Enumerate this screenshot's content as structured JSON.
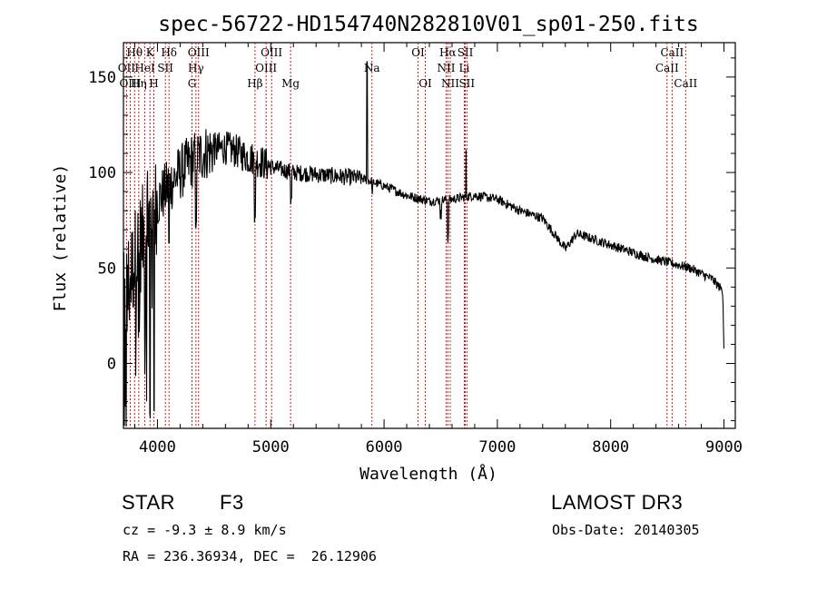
{
  "chart_data": {
    "type": "line",
    "title": "spec-56722-HD154740N282810V01_sp01-250.fits",
    "xlabel": "Wavelength (Å)",
    "ylabel": "Flux (relative)",
    "xlim": [
      3700,
      9100
    ],
    "ylim": [
      -34,
      168
    ],
    "x_ticks": [
      4000,
      5000,
      6000,
      7000,
      8000,
      9000
    ],
    "y_ticks": [
      0,
      50,
      100,
      150
    ],
    "x_tick_labels": [
      "4000",
      "5000",
      "6000",
      "7000",
      "8000",
      "9000"
    ],
    "y_tick_labels": [
      "0",
      "50",
      "100",
      "150"
    ],
    "line_color": "#d00000",
    "series": [
      {
        "name": "Flux",
        "color": "#000000",
        "continuum": [
          [
            3700,
            30
          ],
          [
            3800,
            55
          ],
          [
            3900,
            72
          ],
          [
            4000,
            85
          ],
          [
            4100,
            93
          ],
          [
            4200,
            100
          ],
          [
            4300,
            106
          ],
          [
            4400,
            110
          ],
          [
            4500,
            112
          ],
          [
            4600,
            113
          ],
          [
            4700,
            111
          ],
          [
            4800,
            108
          ],
          [
            4900,
            106
          ],
          [
            5000,
            103
          ],
          [
            5200,
            100
          ],
          [
            5400,
            99
          ],
          [
            5600,
            98
          ],
          [
            5800,
            97
          ],
          [
            6000,
            93
          ],
          [
            6200,
            88
          ],
          [
            6400,
            85
          ],
          [
            6600,
            86
          ],
          [
            6800,
            88
          ],
          [
            7000,
            86
          ],
          [
            7200,
            80
          ],
          [
            7400,
            76
          ],
          [
            7600,
            60
          ],
          [
            7700,
            68
          ],
          [
            7900,
            64
          ],
          [
            8100,
            60
          ],
          [
            8300,
            56
          ],
          [
            8500,
            53
          ],
          [
            8700,
            50
          ],
          [
            8900,
            44
          ],
          [
            8990,
            38
          ],
          [
            9000,
            8
          ]
        ],
        "spikes": [
          [
            5850,
            158
          ],
          [
            6725,
            112
          ]
        ],
        "dips": [
          [
            6563,
            63
          ],
          [
            6500,
            75
          ],
          [
            5895,
            88
          ],
          [
            5180,
            82
          ],
          [
            4861,
            73
          ],
          [
            4340,
            70
          ],
          [
            4102,
            60
          ],
          [
            3970,
            -28
          ],
          [
            3934,
            -30
          ]
        ]
      }
    ],
    "lines": [
      {
        "label": "Hθ",
        "wavelength": 3798,
        "row": 0
      },
      {
        "label": "OII",
        "wavelength": 3727,
        "row": 1
      },
      {
        "label": "OIII",
        "wavelength": 3760,
        "row": 2
      },
      {
        "label": "K",
        "wavelength": 3934,
        "row": 0
      },
      {
        "label": "HeI",
        "wavelength": 3889,
        "row": 1
      },
      {
        "label": "Hη",
        "wavelength": 3835,
        "row": 2
      },
      {
        "label": "H",
        "wavelength": 3968,
        "row": 2
      },
      {
        "label": "Hδ",
        "wavelength": 4102,
        "row": 0
      },
      {
        "label": "SII",
        "wavelength": 4070,
        "row": 1
      },
      {
        "label": "OIII",
        "wavelength": 4363,
        "row": 0
      },
      {
        "label": "Hγ",
        "wavelength": 4340,
        "row": 1
      },
      {
        "label": "G",
        "wavelength": 4305,
        "row": 2
      },
      {
        "label": "Hβ",
        "wavelength": 4861,
        "row": 2
      },
      {
        "label": "OIII",
        "wavelength": 5007,
        "row": 0
      },
      {
        "label": "OIII",
        "wavelength": 4959,
        "row": 1
      },
      {
        "label": "Mg",
        "wavelength": 5175,
        "row": 2
      },
      {
        "label": "Na",
        "wavelength": 5893,
        "row": 1
      },
      {
        "label": "OI",
        "wavelength": 6300,
        "row": 0
      },
      {
        "label": "OI",
        "wavelength": 6364,
        "row": 2
      },
      {
        "label": "Hα",
        "wavelength": 6563,
        "row": 0
      },
      {
        "label": "NII",
        "wavelength": 6548,
        "row": 1
      },
      {
        "label": "NII",
        "wavelength": 6584,
        "row": 2
      },
      {
        "label": "SII",
        "wavelength": 6717,
        "row": 0
      },
      {
        "label": "Li",
        "wavelength": 6708,
        "row": 1
      },
      {
        "label": "SII",
        "wavelength": 6731,
        "row": 2
      },
      {
        "label": "CaII",
        "wavelength": 8542,
        "row": 0
      },
      {
        "label": "CaII",
        "wavelength": 8498,
        "row": 1
      },
      {
        "label": "CaII",
        "wavelength": 8662,
        "row": 2
      }
    ]
  },
  "info": {
    "object_class": "STAR",
    "subclass": "F3",
    "redshift_line": "cz = -9.3 ± 8.9 km/s",
    "coords_line": "RA = 236.36934, DEC =  26.12906",
    "survey": "LAMOST DR3",
    "obs_date": "Obs-Date: 20140305"
  }
}
